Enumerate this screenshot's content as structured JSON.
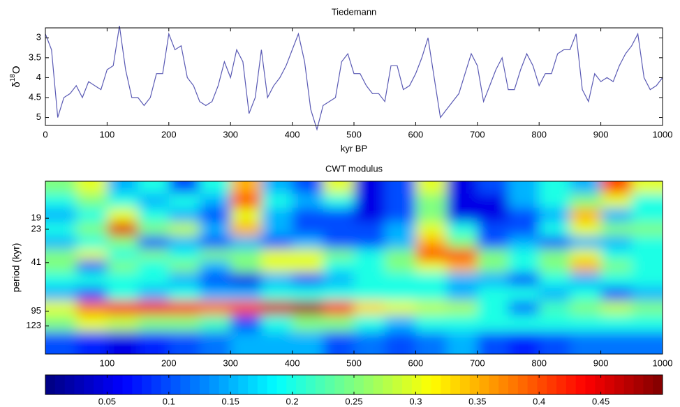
{
  "chart_data": [
    {
      "type": "line",
      "title": "Tiedemann",
      "xlabel": "kyr BP",
      "ylabel": [
        "δ",
        "18",
        "O"
      ],
      "x": [
        0,
        10,
        20,
        30,
        40,
        50,
        60,
        70,
        80,
        90,
        100,
        110,
        120,
        130,
        140,
        150,
        160,
        170,
        180,
        190,
        200,
        210,
        220,
        230,
        240,
        250,
        260,
        270,
        280,
        290,
        300,
        310,
        320,
        330,
        340,
        350,
        360,
        370,
        380,
        390,
        400,
        410,
        420,
        430,
        440,
        450,
        460,
        470,
        480,
        490,
        500,
        510,
        520,
        530,
        540,
        550,
        560,
        570,
        580,
        590,
        600,
        610,
        620,
        630,
        640,
        650,
        660,
        670,
        680,
        690,
        700,
        710,
        720,
        730,
        740,
        750,
        760,
        770,
        780,
        790,
        800,
        810,
        820,
        830,
        840,
        850,
        860,
        870,
        880,
        890,
        900,
        910,
        920,
        930,
        940,
        950,
        960,
        970,
        980,
        990,
        1000
      ],
      "series": [
        {
          "name": "Tiedemann",
          "color": "#5a5ab4",
          "values": [
            2.9,
            3.3,
            5.0,
            4.5,
            4.4,
            4.2,
            4.5,
            4.1,
            4.2,
            4.3,
            3.8,
            3.7,
            2.7,
            3.8,
            4.5,
            4.5,
            4.7,
            4.5,
            3.9,
            3.9,
            2.9,
            3.3,
            3.2,
            4.0,
            4.2,
            4.6,
            4.7,
            4.6,
            4.2,
            3.6,
            4.0,
            3.3,
            3.6,
            4.9,
            4.5,
            3.3,
            4.5,
            4.2,
            4.0,
            3.7,
            3.3,
            2.9,
            3.6,
            4.8,
            5.3,
            4.7,
            4.6,
            4.5,
            3.6,
            3.4,
            3.9,
            3.9,
            4.2,
            4.4,
            4.4,
            4.6,
            3.7,
            3.7,
            4.3,
            4.2,
            3.9,
            3.5,
            3.0,
            4.0,
            5.0,
            4.8,
            4.6,
            4.4,
            3.9,
            3.4,
            3.7,
            4.6,
            4.2,
            3.8,
            3.5,
            4.3,
            4.3,
            3.8,
            3.4,
            3.7,
            4.2,
            3.9,
            3.9,
            3.4,
            3.3,
            3.3,
            2.9,
            4.3,
            4.6,
            3.9,
            4.1,
            4.0,
            4.1,
            3.7,
            3.4,
            3.2,
            2.9,
            4.0,
            4.3,
            4.2,
            4.0
          ]
        }
      ],
      "xlim": [
        0,
        1000
      ],
      "xticks": [
        0,
        100,
        200,
        300,
        400,
        500,
        600,
        700,
        800,
        900,
        1000
      ],
      "ylim": [
        2.75,
        5.2
      ],
      "y_reversed": true,
      "yticks": [
        3,
        3.5,
        4,
        4.5,
        5
      ]
    },
    {
      "type": "heatmap",
      "title": "CWT modulus",
      "ylabel": "period (kyr)",
      "x": [
        25,
        75,
        125,
        175,
        225,
        275,
        325,
        375,
        425,
        475,
        525,
        575,
        625,
        675,
        725,
        775,
        825,
        875,
        925,
        975
      ],
      "y": [
        11,
        14,
        18,
        23,
        29,
        36,
        43,
        55,
        70,
        90,
        115,
        160
      ],
      "z": [
        [
          0.25,
          0.3,
          0.15,
          0.2,
          0.1,
          0.2,
          0.35,
          0.15,
          0.1,
          0.3,
          0.05,
          0.1,
          0.3,
          0.05,
          0.1,
          0.15,
          0.2,
          0.15,
          0.4,
          0.3
        ],
        [
          0.2,
          0.25,
          0.2,
          0.15,
          0.2,
          0.15,
          0.4,
          0.2,
          0.15,
          0.2,
          0.05,
          0.1,
          0.25,
          0.05,
          0.05,
          0.15,
          0.2,
          0.25,
          0.3,
          0.2
        ],
        [
          0.15,
          0.2,
          0.3,
          0.2,
          0.15,
          0.1,
          0.3,
          0.15,
          0.1,
          0.1,
          0.05,
          0.1,
          0.25,
          0.05,
          0.05,
          0.1,
          0.15,
          0.35,
          0.15,
          0.2
        ],
        [
          0.2,
          0.25,
          0.45,
          0.25,
          0.28,
          0.15,
          0.35,
          0.15,
          0.1,
          0.1,
          0.1,
          0.15,
          0.3,
          0.2,
          0.1,
          0.1,
          0.2,
          0.3,
          0.25,
          0.25
        ],
        [
          0.15,
          0.2,
          0.25,
          0.1,
          0.15,
          0.1,
          0.15,
          0.1,
          0.15,
          0.1,
          0.1,
          0.15,
          0.35,
          0.25,
          0.1,
          0.15,
          0.1,
          0.15,
          0.15,
          0.2
        ],
        [
          0.25,
          0.3,
          0.2,
          0.25,
          0.2,
          0.25,
          0.25,
          0.3,
          0.3,
          0.25,
          0.2,
          0.25,
          0.42,
          0.42,
          0.25,
          0.2,
          0.25,
          0.3,
          0.2,
          0.2
        ],
        [
          0.25,
          0.1,
          0.25,
          0.2,
          0.25,
          0.15,
          0.25,
          0.3,
          0.3,
          0.2,
          0.2,
          0.25,
          0.3,
          0.35,
          0.25,
          0.2,
          0.25,
          0.35,
          0.25,
          0.2
        ],
        [
          0.2,
          0.2,
          0.2,
          0.2,
          0.15,
          0.1,
          0.05,
          0.15,
          0.1,
          0.15,
          0.2,
          0.2,
          0.2,
          0.15,
          0.15,
          0.1,
          0.2,
          0.15,
          0.2,
          0.2
        ],
        [
          0.15,
          0.1,
          0.2,
          0.15,
          0.2,
          0.15,
          0.15,
          0.2,
          0.2,
          0.2,
          0.2,
          0.2,
          0.2,
          0.15,
          0.2,
          0.2,
          0.15,
          0.2,
          0.1,
          0.15
        ],
        [
          0.3,
          0.38,
          0.43,
          0.44,
          0.42,
          0.38,
          0.4,
          0.46,
          0.48,
          0.42,
          0.33,
          0.3,
          0.28,
          0.27,
          0.2,
          0.12,
          0.22,
          0.25,
          0.28,
          0.25
        ],
        [
          0.25,
          0.3,
          0.28,
          0.25,
          0.25,
          0.22,
          0.1,
          0.2,
          0.25,
          0.25,
          0.2,
          0.15,
          0.2,
          0.2,
          0.2,
          0.2,
          0.2,
          0.2,
          0.2,
          0.2
        ],
        [
          0.1,
          0.08,
          0.05,
          0.08,
          0.1,
          0.12,
          0.15,
          0.15,
          0.15,
          0.1,
          0.12,
          0.1,
          0.12,
          0.15,
          0.1,
          0.08,
          0.1,
          0.12,
          0.12,
          0.12
        ]
      ],
      "xlim": [
        0,
        1000
      ],
      "xticks": [
        100,
        200,
        300,
        400,
        500,
        600,
        700,
        800,
        900,
        1000
      ],
      "yscale": "log",
      "ylim": [
        10,
        200
      ],
      "yticks": [
        19,
        23,
        41,
        95,
        123
      ],
      "colormap": "jet",
      "colorbar": {
        "lim": [
          0,
          0.5
        ],
        "ticks": [
          0.05,
          0.1,
          0.15,
          0.2,
          0.25,
          0.3,
          0.35,
          0.4,
          0.45
        ]
      }
    }
  ]
}
